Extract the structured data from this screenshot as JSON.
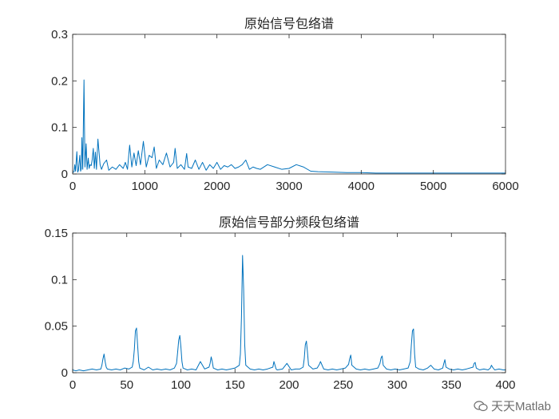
{
  "colors": {
    "line": "#0072BD",
    "axis": "#262626",
    "background": "#ffffff"
  },
  "watermark": {
    "text": "天天Matlab",
    "icon": "wechat-logo-icon"
  },
  "chart_data": [
    {
      "type": "line",
      "title": "原始信号包络谱",
      "xlabel": "",
      "ylabel": "",
      "xlim": [
        0,
        6000
      ],
      "ylim": [
        0,
        0.3
      ],
      "xticks": [
        0,
        1000,
        2000,
        3000,
        4000,
        5000,
        6000
      ],
      "yticks": [
        0,
        0.1,
        0.2,
        0.3
      ],
      "xtick_labels": [
        "0",
        "1000",
        "2000",
        "3000",
        "4000",
        "5000",
        "6000"
      ],
      "ytick_labels": [
        "0",
        "0.1",
        "0.2",
        "0.3"
      ],
      "grid": false,
      "series": [
        {
          "x": [
            0,
            10,
            20,
            29,
            40,
            58,
            70,
            80,
            99,
            110,
            120,
            128,
            140,
            157,
            170,
            187,
            200,
            216,
            228,
            240,
            257,
            270,
            286,
            300,
            315,
            330,
            350,
            380,
            400,
            430,
            470,
            500,
            550,
            600,
            650,
            700,
            730,
            760,
            790,
            820,
            850,
            880,
            910,
            940,
            980,
            1020,
            1060,
            1100,
            1130,
            1160,
            1200,
            1250,
            1300,
            1350,
            1400,
            1420,
            1450,
            1500,
            1550,
            1580,
            1600,
            1650,
            1700,
            1750,
            1800,
            1850,
            1900,
            1950,
            2000,
            2050,
            2100,
            2150,
            2200,
            2250,
            2300,
            2350,
            2400,
            2450,
            2500,
            2550,
            2600,
            2700,
            2800,
            2900,
            3000,
            3100,
            3200,
            3300,
            3400,
            3600,
            3800,
            4000,
            4200,
            4500,
            5000,
            5500,
            6000
          ],
          "y": [
            0.003,
            0.004,
            0.005,
            0.02,
            0.006,
            0.048,
            0.004,
            0.008,
            0.04,
            0.006,
            0.012,
            0.078,
            0.01,
            0.202,
            0.015,
            0.065,
            0.01,
            0.034,
            0.012,
            0.02,
            0.018,
            0.03,
            0.055,
            0.012,
            0.047,
            0.01,
            0.075,
            0.02,
            0.01,
            0.022,
            0.03,
            0.008,
            0.015,
            0.01,
            0.02,
            0.012,
            0.025,
            0.01,
            0.062,
            0.015,
            0.045,
            0.018,
            0.05,
            0.02,
            0.07,
            0.015,
            0.04,
            0.035,
            0.058,
            0.012,
            0.03,
            0.02,
            0.045,
            0.015,
            0.025,
            0.055,
            0.012,
            0.02,
            0.01,
            0.044,
            0.015,
            0.012,
            0.03,
            0.01,
            0.025,
            0.008,
            0.02,
            0.012,
            0.025,
            0.01,
            0.018,
            0.015,
            0.02,
            0.012,
            0.015,
            0.02,
            0.03,
            0.01,
            0.015,
            0.012,
            0.01,
            0.02,
            0.015,
            0.01,
            0.012,
            0.02,
            0.015,
            0.006,
            0.005,
            0.004,
            0.003,
            0.003,
            0.002,
            0.002,
            0.002,
            0.002,
            0.002
          ]
        }
      ]
    },
    {
      "type": "line",
      "title": "原始信号部分频段包络谱",
      "xlabel": "",
      "ylabel": "",
      "xlim": [
        0,
        400
      ],
      "ylim": [
        0,
        0.15
      ],
      "xticks": [
        0,
        50,
        100,
        150,
        200,
        250,
        300,
        350,
        400
      ],
      "yticks": [
        0,
        0.05,
        0.1,
        0.15
      ],
      "xtick_labels": [
        "0",
        "50",
        "100",
        "150",
        "200",
        "250",
        "300",
        "350",
        "400"
      ],
      "ytick_labels": [
        "0",
        "0.05",
        "0.1",
        "0.15"
      ],
      "grid": false,
      "series": [
        {
          "x": [
            0,
            3,
            6,
            10,
            14,
            18,
            22,
            26,
            27,
            28,
            29,
            30,
            31,
            32,
            36,
            40,
            44,
            48,
            52,
            55,
            56,
            57,
            58,
            59,
            60,
            61,
            62,
            66,
            70,
            74,
            78,
            82,
            86,
            90,
            94,
            96,
            97,
            98,
            99,
            100,
            101,
            102,
            106,
            110,
            114,
            118,
            122,
            126,
            127,
            128,
            129,
            130,
            134,
            138,
            142,
            146,
            150,
            154,
            155,
            156,
            157,
            158,
            159,
            160,
            164,
            168,
            172,
            176,
            180,
            185,
            186,
            187,
            188,
            189,
            194,
            198,
            202,
            206,
            210,
            213,
            214,
            215,
            216,
            217,
            218,
            222,
            226,
            228,
            229,
            232,
            236,
            240,
            244,
            248,
            252,
            255,
            256,
            257,
            258,
            262,
            266,
            270,
            274,
            278,
            282,
            284,
            285,
            286,
            287,
            290,
            294,
            298,
            302,
            306,
            310,
            312,
            313,
            314,
            315,
            316,
            317,
            320,
            324,
            328,
            331,
            334,
            338,
            342,
            343,
            344,
            345,
            348,
            352,
            356,
            360,
            364,
            370,
            371,
            372,
            373,
            376,
            380,
            384,
            386,
            387,
            388,
            390,
            394,
            398,
            400
          ],
          "y": [
            0.003,
            0.002,
            0.003,
            0.002,
            0.003,
            0.004,
            0.003,
            0.004,
            0.008,
            0.015,
            0.02,
            0.012,
            0.006,
            0.004,
            0.003,
            0.004,
            0.003,
            0.005,
            0.004,
            0.006,
            0.012,
            0.025,
            0.045,
            0.048,
            0.03,
            0.012,
            0.005,
            0.003,
            0.006,
            0.003,
            0.004,
            0.003,
            0.004,
            0.003,
            0.005,
            0.01,
            0.022,
            0.035,
            0.04,
            0.028,
            0.012,
            0.005,
            0.003,
            0.004,
            0.003,
            0.012,
            0.004,
            0.006,
            0.01,
            0.017,
            0.012,
            0.005,
            0.003,
            0.004,
            0.003,
            0.004,
            0.005,
            0.008,
            0.02,
            0.06,
            0.126,
            0.09,
            0.03,
            0.008,
            0.004,
            0.003,
            0.004,
            0.003,
            0.004,
            0.006,
            0.012,
            0.008,
            0.004,
            0.003,
            0.004,
            0.01,
            0.003,
            0.004,
            0.004,
            0.006,
            0.015,
            0.03,
            0.034,
            0.022,
            0.008,
            0.004,
            0.005,
            0.009,
            0.012,
            0.004,
            0.003,
            0.004,
            0.003,
            0.004,
            0.005,
            0.009,
            0.015,
            0.019,
            0.008,
            0.004,
            0.003,
            0.004,
            0.003,
            0.004,
            0.005,
            0.01,
            0.016,
            0.018,
            0.008,
            0.004,
            0.003,
            0.004,
            0.003,
            0.004,
            0.005,
            0.012,
            0.03,
            0.045,
            0.047,
            0.02,
            0.006,
            0.004,
            0.003,
            0.005,
            0.008,
            0.004,
            0.003,
            0.005,
            0.01,
            0.014,
            0.006,
            0.004,
            0.003,
            0.004,
            0.003,
            0.004,
            0.006,
            0.01,
            0.011,
            0.005,
            0.003,
            0.004,
            0.003,
            0.005,
            0.008,
            0.006,
            0.003,
            0.004,
            0.003,
            0.003
          ]
        }
      ]
    }
  ]
}
